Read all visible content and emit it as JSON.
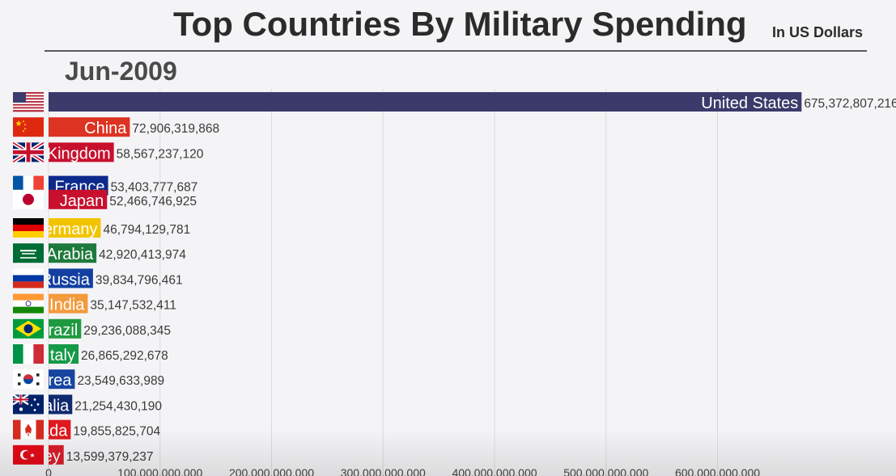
{
  "header": {
    "title": "Top Countries By Military Spending",
    "subtitle": "In US Dollars",
    "date": "Jun-2009"
  },
  "colors": {
    "bar_text": "#ffffff",
    "value_text": "#3a3a3a",
    "grid": "#dcdcdc",
    "axis_text": "#444444"
  },
  "chart_data": {
    "type": "bar",
    "orientation": "horizontal",
    "title": "Top Countries By Military Spending",
    "subtitle": "In US Dollars",
    "date": "Jun-2009",
    "xlim": [
      0,
      700000000000
    ],
    "x_ticks": [
      0,
      100000000000,
      200000000000,
      300000000000,
      400000000000,
      500000000000,
      600000000000
    ],
    "x_tick_labels": [
      "0",
      "100,000,000,000",
      "200,000,000,000",
      "300,000,000,000",
      "400,000,000,000",
      "500,000,000,000",
      "600,000,000,000"
    ],
    "grid": true,
    "bars": [
      {
        "label": "United States",
        "value": 675372807216,
        "value_label": "675,372,807,216",
        "color": "#3b3a6b",
        "flag": "us-flag"
      },
      {
        "label": "China",
        "value": 72906319868,
        "value_label": "72,906,319,868",
        "color": "#dd3322",
        "flag": "china-flag"
      },
      {
        "label": "United Kingdom",
        "value": 58567237120,
        "value_label": "58,567,237,120",
        "color": "#c8102e",
        "flag": "uk-flag"
      },
      {
        "label": "France",
        "value": 53403777687,
        "value_label": "53,403,777,687",
        "color": "#0b2a8c",
        "flag": "france-flag"
      },
      {
        "label": "Japan",
        "value": 52466746925,
        "value_label": "52,466,746,925",
        "color": "#c8102e",
        "flag": "japan-flag"
      },
      {
        "label": "Germany",
        "value": 46794129781,
        "value_label": "46,794,129,781",
        "color": "#f2c400",
        "flag": "germany-flag"
      },
      {
        "label": "Saudi Arabia",
        "value": 42920413974,
        "value_label": "42,920,413,974",
        "color": "#1e7a3c",
        "flag": "saudi-arabia-flag"
      },
      {
        "label": "Russia",
        "value": 39834796461,
        "value_label": "39,834,796,461",
        "color": "#1340a0",
        "flag": "russia-flag"
      },
      {
        "label": "India",
        "value": 35147532411,
        "value_label": "35,147,532,411",
        "color": "#f39a3c",
        "flag": "india-flag"
      },
      {
        "label": "Brazil",
        "value": 29236088345,
        "value_label": "29,236,088,345",
        "color": "#1f9a40",
        "flag": "brazil-flag"
      },
      {
        "label": "Italy",
        "value": 26865292678,
        "value_label": "26,865,292,678",
        "color": "#159a48",
        "flag": "italy-flag"
      },
      {
        "label": "Korea",
        "value": 23549633989,
        "value_label": "23,549,633,989",
        "color": "#1746a0",
        "flag": "korea-flag"
      },
      {
        "label": "Australia",
        "value": 21254430190,
        "value_label": "21,254,430,190",
        "color": "#0f2a6e",
        "flag": "australia-flag"
      },
      {
        "label": "Canada",
        "value": 19855825704,
        "value_label": "19,855,825,704",
        "color": "#e0181f",
        "flag": "canada-flag"
      },
      {
        "label": "Turkey",
        "value": 13599379237,
        "value_label": "13,599,379,237",
        "color": "#d81e2a",
        "flag": "turkey-flag"
      }
    ]
  }
}
